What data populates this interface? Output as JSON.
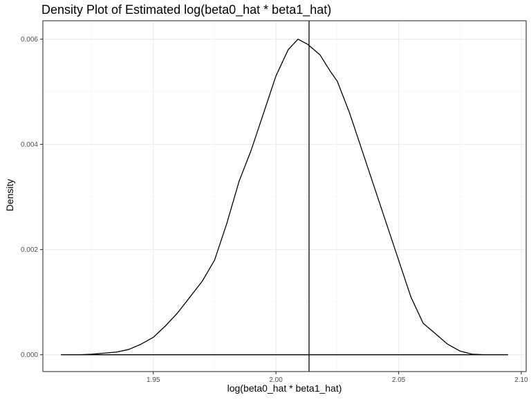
{
  "chart_data": {
    "type": "line",
    "title": "Density Plot of Estimated log(beta0_hat * beta1_hat)",
    "xlabel": "log(beta0_hat * beta1_hat)",
    "ylabel": "Density",
    "xlim": [
      1.905,
      2.102
    ],
    "ylim": [
      -0.00032,
      0.00635
    ],
    "x_major_ticks": [
      1.95,
      2.0,
      2.05,
      2.1
    ],
    "x_tick_labels": [
      "1.95",
      "2.00",
      "2.05",
      "2.10"
    ],
    "y_major_ticks": [
      0.0,
      0.002,
      0.004,
      0.006
    ],
    "y_tick_labels": [
      "0.000",
      "0.002",
      "0.004",
      "0.006"
    ],
    "x_minor_ticks": [
      1.925,
      1.975,
      2.025,
      2.075
    ],
    "y_minor_ticks": [
      0.001,
      0.003,
      0.005
    ],
    "grid": true,
    "theme": "bw",
    "vline_x": 2.0135,
    "series": [
      {
        "color": "#000000",
        "x": [
          1.9125,
          1.92,
          1.925,
          1.93,
          1.935,
          1.94,
          1.945,
          1.95,
          1.955,
          1.96,
          1.965,
          1.97,
          1.975,
          1.98,
          1.985,
          1.99,
          1.995,
          2.0,
          2.005,
          2.009,
          2.013,
          2.018,
          2.022,
          2.025,
          2.03,
          2.035,
          2.04,
          2.045,
          2.05,
          2.055,
          2.06,
          2.065,
          2.07,
          2.075,
          2.08,
          2.085,
          2.09,
          2.0945
        ],
        "y": [
          0.0,
          0.0,
          1e-05,
          3e-05,
          5e-05,
          0.0001,
          0.0002,
          0.00033,
          0.00055,
          0.0008,
          0.0011,
          0.0014,
          0.0018,
          0.0025,
          0.0033,
          0.0039,
          0.0046,
          0.0053,
          0.0058,
          0.006,
          0.0059,
          0.0057,
          0.0054,
          0.0052,
          0.0046,
          0.0039,
          0.0032,
          0.0025,
          0.0018,
          0.0011,
          0.0006,
          0.0004,
          0.0002,
          7e-05,
          1e-05,
          0.0,
          0.0,
          0.0
        ]
      }
    ]
  }
}
